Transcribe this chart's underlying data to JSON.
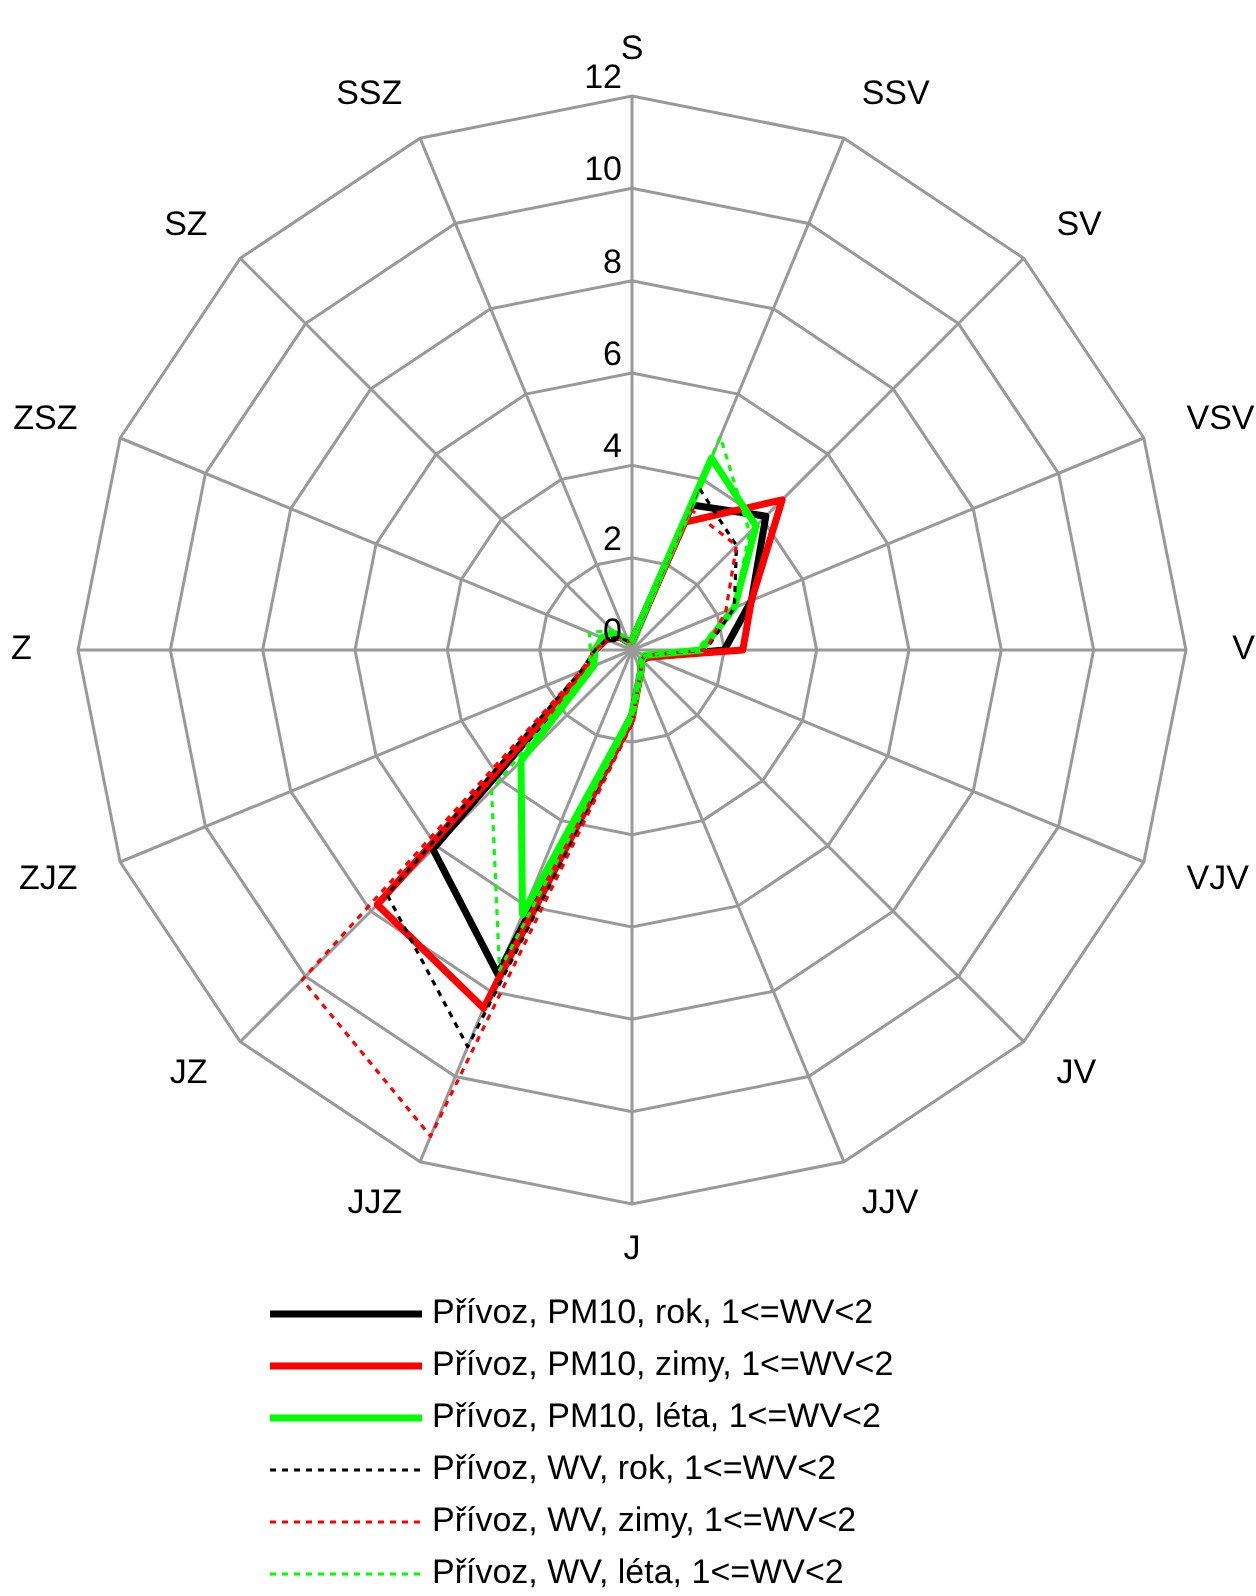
{
  "chart_data": {
    "type": "radar",
    "categories": [
      "S",
      "SSV",
      "SV",
      "VSV",
      "V",
      "VJV",
      "JV",
      "JJV",
      "J",
      "JJZ",
      "JZ",
      "ZJZ",
      "Z",
      "ZSZ",
      "SZ",
      "SSZ"
    ],
    "ylim": [
      0,
      12
    ],
    "yticks": [
      0,
      2,
      4,
      6,
      8,
      10,
      12
    ],
    "grid": true,
    "legend": "bottom",
    "series": [
      {
        "name": "Přívoz, PM10, rok, 1<=WV<2",
        "color": "#000000",
        "line_style": "solid",
        "values": [
          0.2,
          3.4,
          4.1,
          2.8,
          2.0,
          0.4,
          0.3,
          0.5,
          1.4,
          7.6,
          6.1,
          1.0,
          0.8,
          0.6,
          0.4,
          0.2
        ]
      },
      {
        "name": "Přívoz, PM10, zimy, 1<=WV<2",
        "color": "#ff0000",
        "line_style": "solid",
        "values": [
          0.2,
          3.0,
          4.6,
          2.8,
          2.4,
          0.4,
          0.3,
          0.5,
          1.5,
          8.4,
          7.8,
          1.0,
          0.8,
          0.6,
          0.4,
          0.2
        ]
      },
      {
        "name": "Přívoz, PM10, léta, 1<=WV<2",
        "color": "#00ff00",
        "line_style": "solid",
        "values": [
          0.2,
          4.5,
          3.8,
          2.4,
          1.5,
          0.3,
          0.3,
          0.5,
          1.4,
          6.2,
          3.4,
          0.9,
          0.8,
          0.7,
          0.5,
          0.2
        ]
      },
      {
        "name": "Přívoz, WV, rok, 1<=WV<2",
        "color": "#000000",
        "line_style": "dashed",
        "values": [
          0.2,
          3.8,
          3.2,
          2.4,
          1.6,
          0.3,
          0.3,
          0.5,
          1.6,
          9.3,
          7.5,
          1.2,
          0.8,
          0.6,
          0.4,
          0.2
        ]
      },
      {
        "name": "Přívoz, WV, zimy, 1<=WV<2",
        "color": "#ff0000",
        "line_style": "dashed",
        "values": [
          0.2,
          3.3,
          3.2,
          2.2,
          1.6,
          0.3,
          0.3,
          0.5,
          1.6,
          11.4,
          10.1,
          1.2,
          0.8,
          0.6,
          0.4,
          0.2
        ]
      },
      {
        "name": "Přívoz, WV, léta, 1<=WV<2",
        "color": "#00ff00",
        "line_style": "dashed",
        "values": [
          0.2,
          5.0,
          3.6,
          2.4,
          1.4,
          0.3,
          0.3,
          0.5,
          1.5,
          7.5,
          4.3,
          1.0,
          0.9,
          1.0,
          0.6,
          0.3
        ]
      }
    ]
  }
}
